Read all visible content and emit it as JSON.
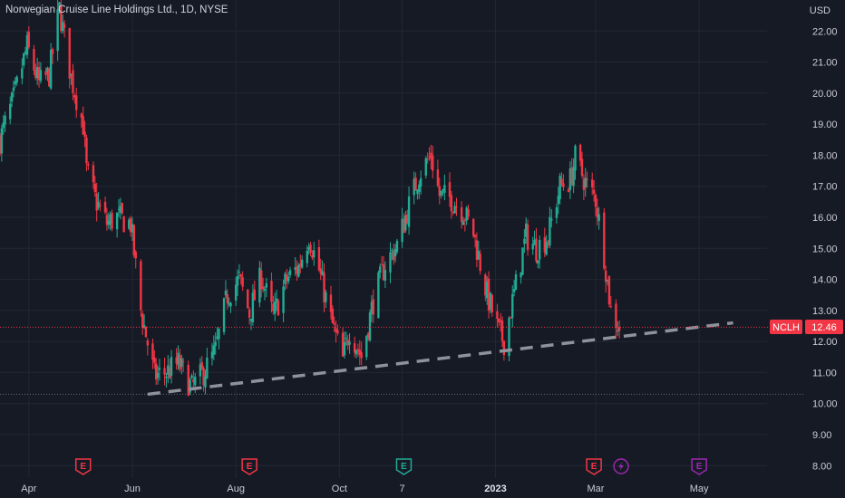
{
  "header": {
    "title": "Norwegian Cruise Line Holdings Ltd., 1D, NYSE",
    "currency": "USD"
  },
  "price_tag": {
    "symbol": "NCLH",
    "value": "12.46",
    "color": "#f23645"
  },
  "events": [
    {
      "label": "E",
      "type": "earnings",
      "date": "2022-05-03",
      "color": "#f23645"
    },
    {
      "label": "E",
      "type": "earnings",
      "date": "2022-08-09",
      "color": "#f23645"
    },
    {
      "label": "E",
      "type": "earnings",
      "date": "2022-11-08",
      "color": "#22ab94"
    },
    {
      "label": "E",
      "type": "earnings",
      "date": "2023-02-28",
      "color": "#f23645"
    },
    {
      "label": "",
      "type": "split-dividend",
      "icon": "lightning-icon",
      "date": "2023-03-16",
      "color": "#9c27b0"
    },
    {
      "label": "E",
      "type": "earnings-upcoming",
      "date": "2023-05-01",
      "color": "#9c27b0"
    }
  ],
  "chart_data": {
    "type": "candlestick",
    "x_tick_labels": [
      "Apr",
      "Jun",
      "Aug",
      "Oct",
      "7",
      "2023",
      "Mar",
      "May"
    ],
    "y_tick_labels": [
      "8.00",
      "9.00",
      "10.00",
      "11.00",
      "12.00",
      "13.00",
      "14.00",
      "15.00",
      "16.00",
      "17.00",
      "18.00",
      "19.00",
      "20.00",
      "21.00",
      "22.00"
    ],
    "ylim": [
      7.6,
      23.0
    ],
    "xlim": [
      "2022-03-15",
      "2023-06-10"
    ],
    "last_price": 12.46,
    "grid": true,
    "colors": {
      "up": "#22ab94",
      "down": "#f23645",
      "background": "#161a25",
      "grid": "#232734",
      "trendline": "#8f929b"
    },
    "horizontal_line": 10.3,
    "trendline": {
      "points": [
        [
          "2022-06-10",
          10.3
        ],
        [
          "2023-05-21",
          12.6
        ]
      ],
      "style": "dashed"
    },
    "price_path": [
      [
        "2022-03-15",
        18.5
      ],
      [
        "2022-03-23",
        19.8
      ],
      [
        "2022-03-31",
        21.5
      ],
      [
        "2022-04-07",
        20.3
      ],
      [
        "2022-04-13",
        20.6
      ],
      [
        "2022-04-19",
        22.7
      ],
      [
        "2022-04-26",
        20.5
      ],
      [
        "2022-05-03",
        19.0
      ],
      [
        "2022-05-05",
        17.5
      ],
      [
        "2022-05-10",
        16.6
      ],
      [
        "2022-05-17",
        15.8
      ],
      [
        "2022-05-23",
        16.0
      ],
      [
        "2022-05-31",
        15.8
      ],
      [
        "2022-06-06",
        13.0
      ],
      [
        "2022-06-14",
        10.9
      ],
      [
        "2022-06-21",
        11.0
      ],
      [
        "2022-06-28",
        11.3
      ],
      [
        "2022-07-06",
        10.5
      ],
      [
        "2022-07-13",
        11.0
      ],
      [
        "2022-07-20",
        11.7
      ],
      [
        "2022-07-27",
        13.5
      ],
      [
        "2022-08-03",
        14.0
      ],
      [
        "2022-08-09",
        12.9
      ],
      [
        "2022-08-16",
        14.1
      ],
      [
        "2022-08-23",
        12.8
      ],
      [
        "2022-08-31",
        14.0
      ],
      [
        "2022-09-07",
        14.4
      ],
      [
        "2022-09-13",
        15.4
      ],
      [
        "2022-09-19",
        14.3
      ],
      [
        "2022-09-26",
        12.7
      ],
      [
        "2022-10-03",
        11.4
      ],
      [
        "2022-10-07",
        12.4
      ],
      [
        "2022-10-14",
        11.5
      ],
      [
        "2022-10-21",
        13.3
      ],
      [
        "2022-10-28",
        14.5
      ],
      [
        "2022-11-04",
        15.1
      ],
      [
        "2022-11-10",
        16.2
      ],
      [
        "2022-11-17",
        17.4
      ],
      [
        "2022-11-24",
        18.0
      ],
      [
        "2022-11-29",
        16.7
      ],
      [
        "2022-12-06",
        16.6
      ],
      [
        "2022-12-13",
        16.2
      ],
      [
        "2022-12-19",
        15.5
      ],
      [
        "2022-12-27",
        13.5
      ],
      [
        "2023-01-03",
        12.3
      ],
      [
        "2023-01-06",
        12.0
      ],
      [
        "2023-01-13",
        13.8
      ],
      [
        "2023-01-19",
        15.4
      ],
      [
        "2023-01-25",
        15.0
      ],
      [
        "2023-02-01",
        15.4
      ],
      [
        "2023-02-08",
        17.0
      ],
      [
        "2023-02-14",
        17.2
      ],
      [
        "2023-02-17",
        17.9
      ],
      [
        "2023-02-24",
        17.0
      ],
      [
        "2023-03-01",
        16.6
      ],
      [
        "2023-03-06",
        14.8
      ],
      [
        "2023-03-10",
        13.0
      ],
      [
        "2023-03-15",
        12.46
      ]
    ]
  }
}
